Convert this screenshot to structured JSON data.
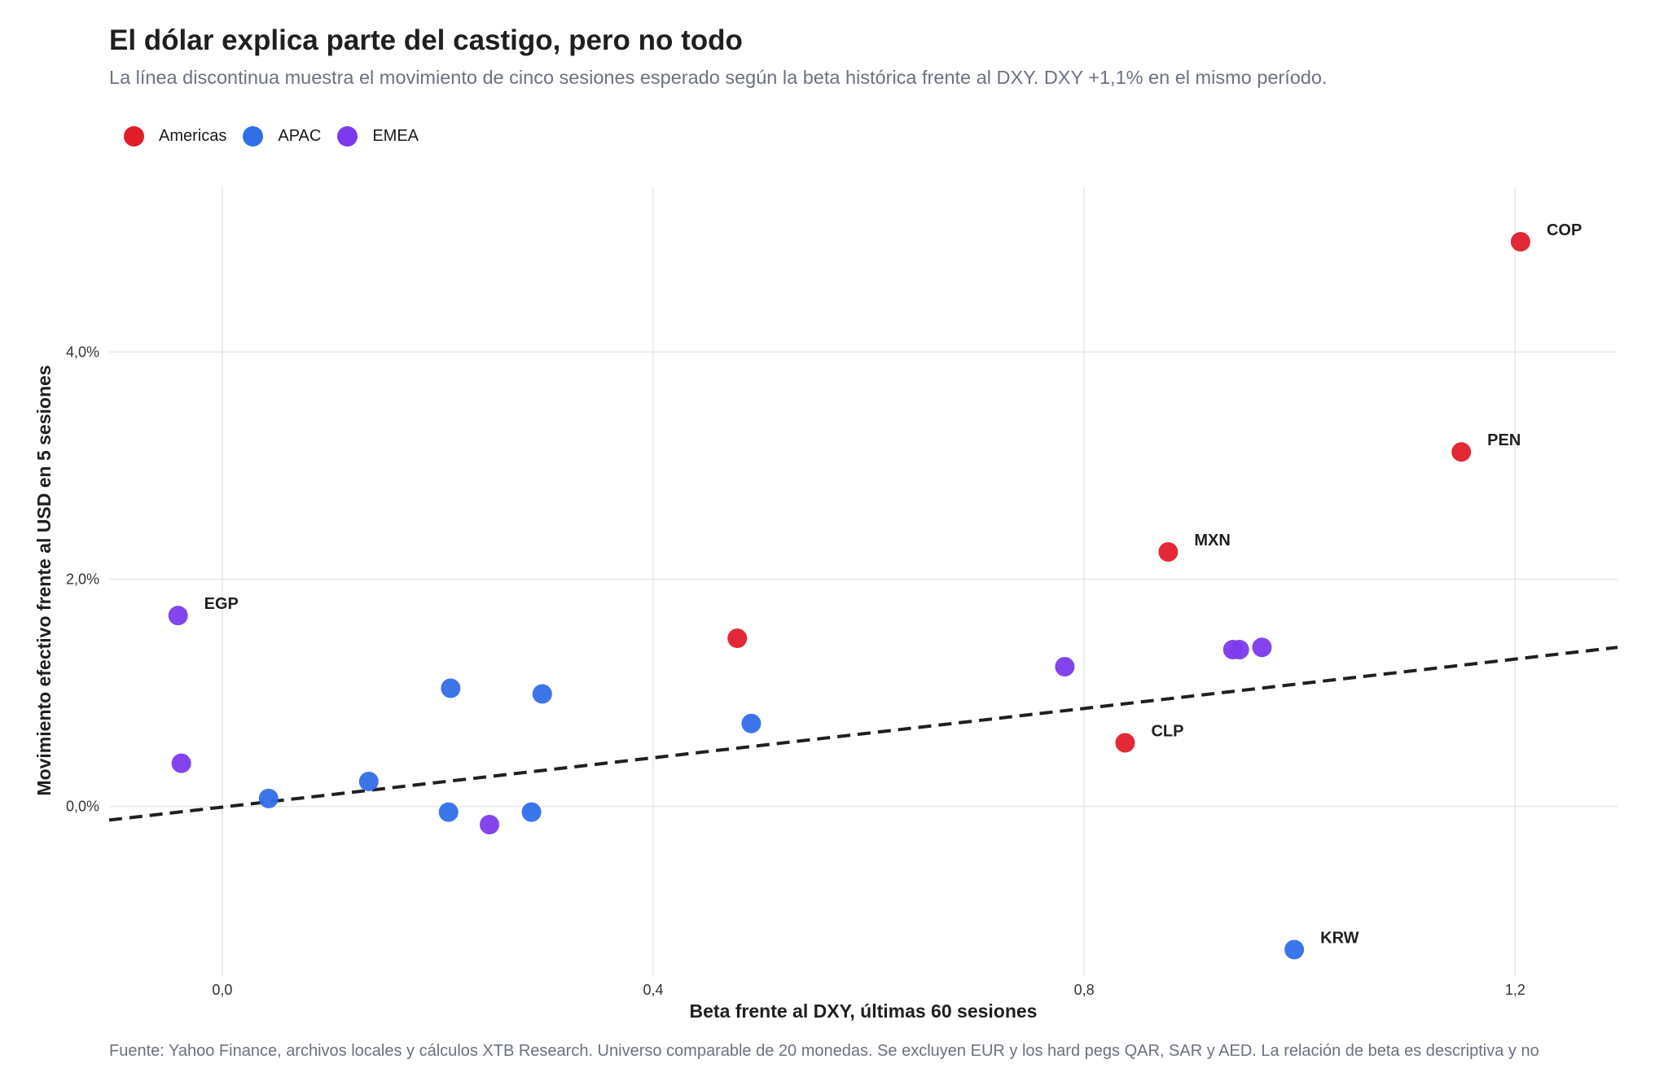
{
  "title": "El dólar explica parte del castigo, pero no todo",
  "subtitle": "La línea discontinua muestra el movimiento de cinco sesiones esperado según la beta histórica frente al DXY. DXY +1,1% en el mismo período.",
  "caption": "Fuente: Yahoo Finance, archivos locales y cálculos XTB Research. Universo comparable de 20 monedas. Se excluyen EUR y los hard pegs QAR, SAR y AED. La relación de beta es descriptiva y no",
  "legend": [
    {
      "name": "Americas",
      "color": "#e11d2a"
    },
    {
      "name": "APAC",
      "color": "#2f6fe8"
    },
    {
      "name": "EMEA",
      "color": "#7c3aed"
    }
  ],
  "chart_data": {
    "type": "scatter",
    "xlabel": "Beta frente al DXY, últimas 60 sesiones",
    "ylabel": "Movimiento efectivo frente al USD en 5 sesiones",
    "xlim": [
      -0.105,
      1.295
    ],
    "ylim": [
      -1.5,
      5.45
    ],
    "xticks": [
      {
        "v": 0.0,
        "label": "0,0"
      },
      {
        "v": 0.4,
        "label": "0,4"
      },
      {
        "v": 0.8,
        "label": "0,8"
      },
      {
        "v": 1.2,
        "label": "1,2"
      }
    ],
    "yticks": [
      {
        "v": 0.0,
        "label": "0,0%"
      },
      {
        "v": 2.0,
        "label": "2,0%"
      },
      {
        "v": 4.0,
        "label": "4,0%"
      }
    ],
    "grid": true,
    "legend_position": "top-left",
    "reference_line": {
      "style": "dashed",
      "x": [
        -0.105,
        1.295
      ],
      "y": [
        -0.12,
        1.4
      ]
    },
    "series": [
      {
        "name": "Americas",
        "color": "#e11d2a",
        "points": [
          {
            "x": 1.205,
            "y": 4.97,
            "label": "COP"
          },
          {
            "x": 1.15,
            "y": 3.12,
            "label": "PEN"
          },
          {
            "x": 0.878,
            "y": 2.24,
            "label": "MXN"
          },
          {
            "x": 0.838,
            "y": 0.56,
            "label": "CLP"
          },
          {
            "x": 0.478,
            "y": 1.48
          }
        ]
      },
      {
        "name": "APAC",
        "color": "#2f6fe8",
        "points": [
          {
            "x": 0.995,
            "y": -1.26,
            "label": "KRW"
          },
          {
            "x": 0.043,
            "y": 0.07
          },
          {
            "x": 0.136,
            "y": 0.22
          },
          {
            "x": 0.21,
            "y": -0.05
          },
          {
            "x": 0.212,
            "y": 1.04
          },
          {
            "x": 0.287,
            "y": -0.05
          },
          {
            "x": 0.297,
            "y": 0.99
          },
          {
            "x": 0.491,
            "y": 0.73
          }
        ]
      },
      {
        "name": "EMEA",
        "color": "#7c3aed",
        "points": [
          {
            "x": -0.041,
            "y": 1.68,
            "label": "EGP"
          },
          {
            "x": -0.038,
            "y": 0.38
          },
          {
            "x": 0.248,
            "y": -0.16
          },
          {
            "x": 0.782,
            "y": 1.23
          },
          {
            "x": 0.938,
            "y": 1.38
          },
          {
            "x": 0.944,
            "y": 1.38
          },
          {
            "x": 0.965,
            "y": 1.4
          }
        ]
      }
    ]
  }
}
